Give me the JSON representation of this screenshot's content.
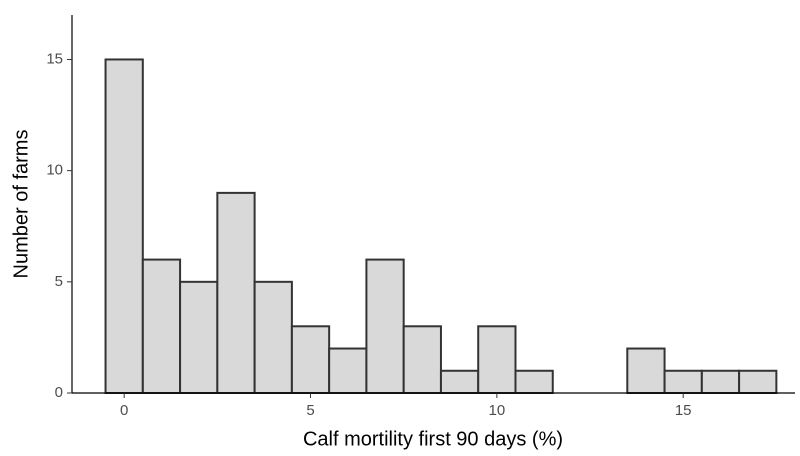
{
  "chart_data": {
    "type": "histogram",
    "xlabel": "Calf mortility first 90 days (%)",
    "ylabel": "Number of farms",
    "bins": [
      -0.5,
      0.5,
      1.5,
      2.5,
      3.5,
      4.5,
      5.5,
      6.5,
      7.5,
      8.5,
      9.5,
      10.5,
      11.5,
      12.5,
      13.5,
      14.5,
      15.5,
      16.5,
      17.5
    ],
    "values": [
      15,
      6,
      5,
      9,
      5,
      3,
      2,
      6,
      3,
      1,
      3,
      1,
      0,
      0,
      2,
      1,
      1,
      1
    ],
    "color": "#d9d9d9",
    "edgecolor": "#333333",
    "xlim": [
      -1.4,
      18.0
    ],
    "xticks": [
      0,
      5,
      10,
      15
    ],
    "ylim": [
      0,
      17
    ],
    "yticks": [
      0,
      5,
      10,
      15
    ],
    "grid": false
  }
}
